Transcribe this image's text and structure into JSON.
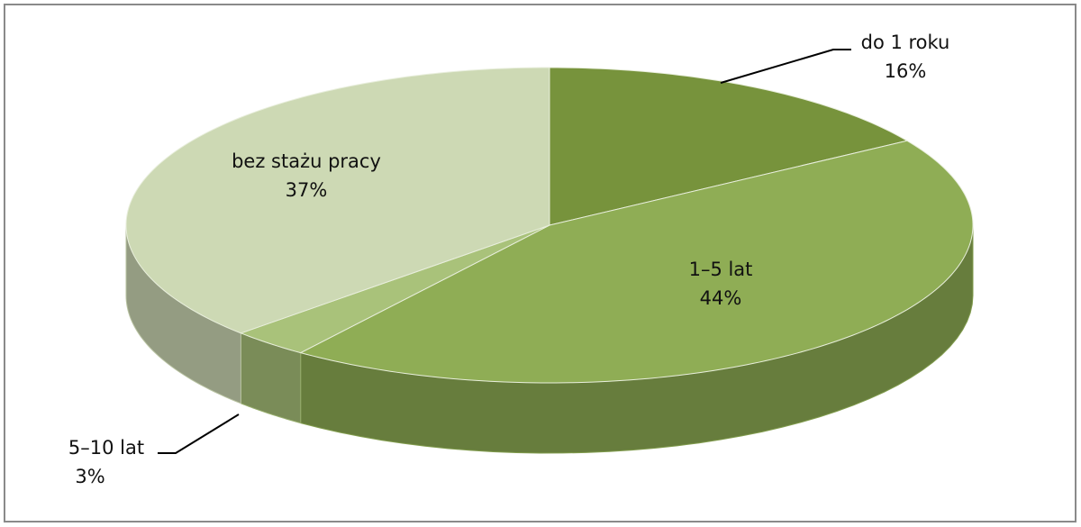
{
  "chart_data": {
    "type": "pie",
    "categories": [
      "do 1 roku",
      "1–5 lat",
      "5–10 lat",
      "bez stażu pracy"
    ],
    "values": [
      16,
      44,
      3,
      37
    ],
    "value_labels": [
      "16%",
      "44%",
      "3%",
      "37%"
    ],
    "colors": [
      "#77933c",
      "#8fad55",
      "#a9c27a",
      "#cdd9b4"
    ]
  }
}
